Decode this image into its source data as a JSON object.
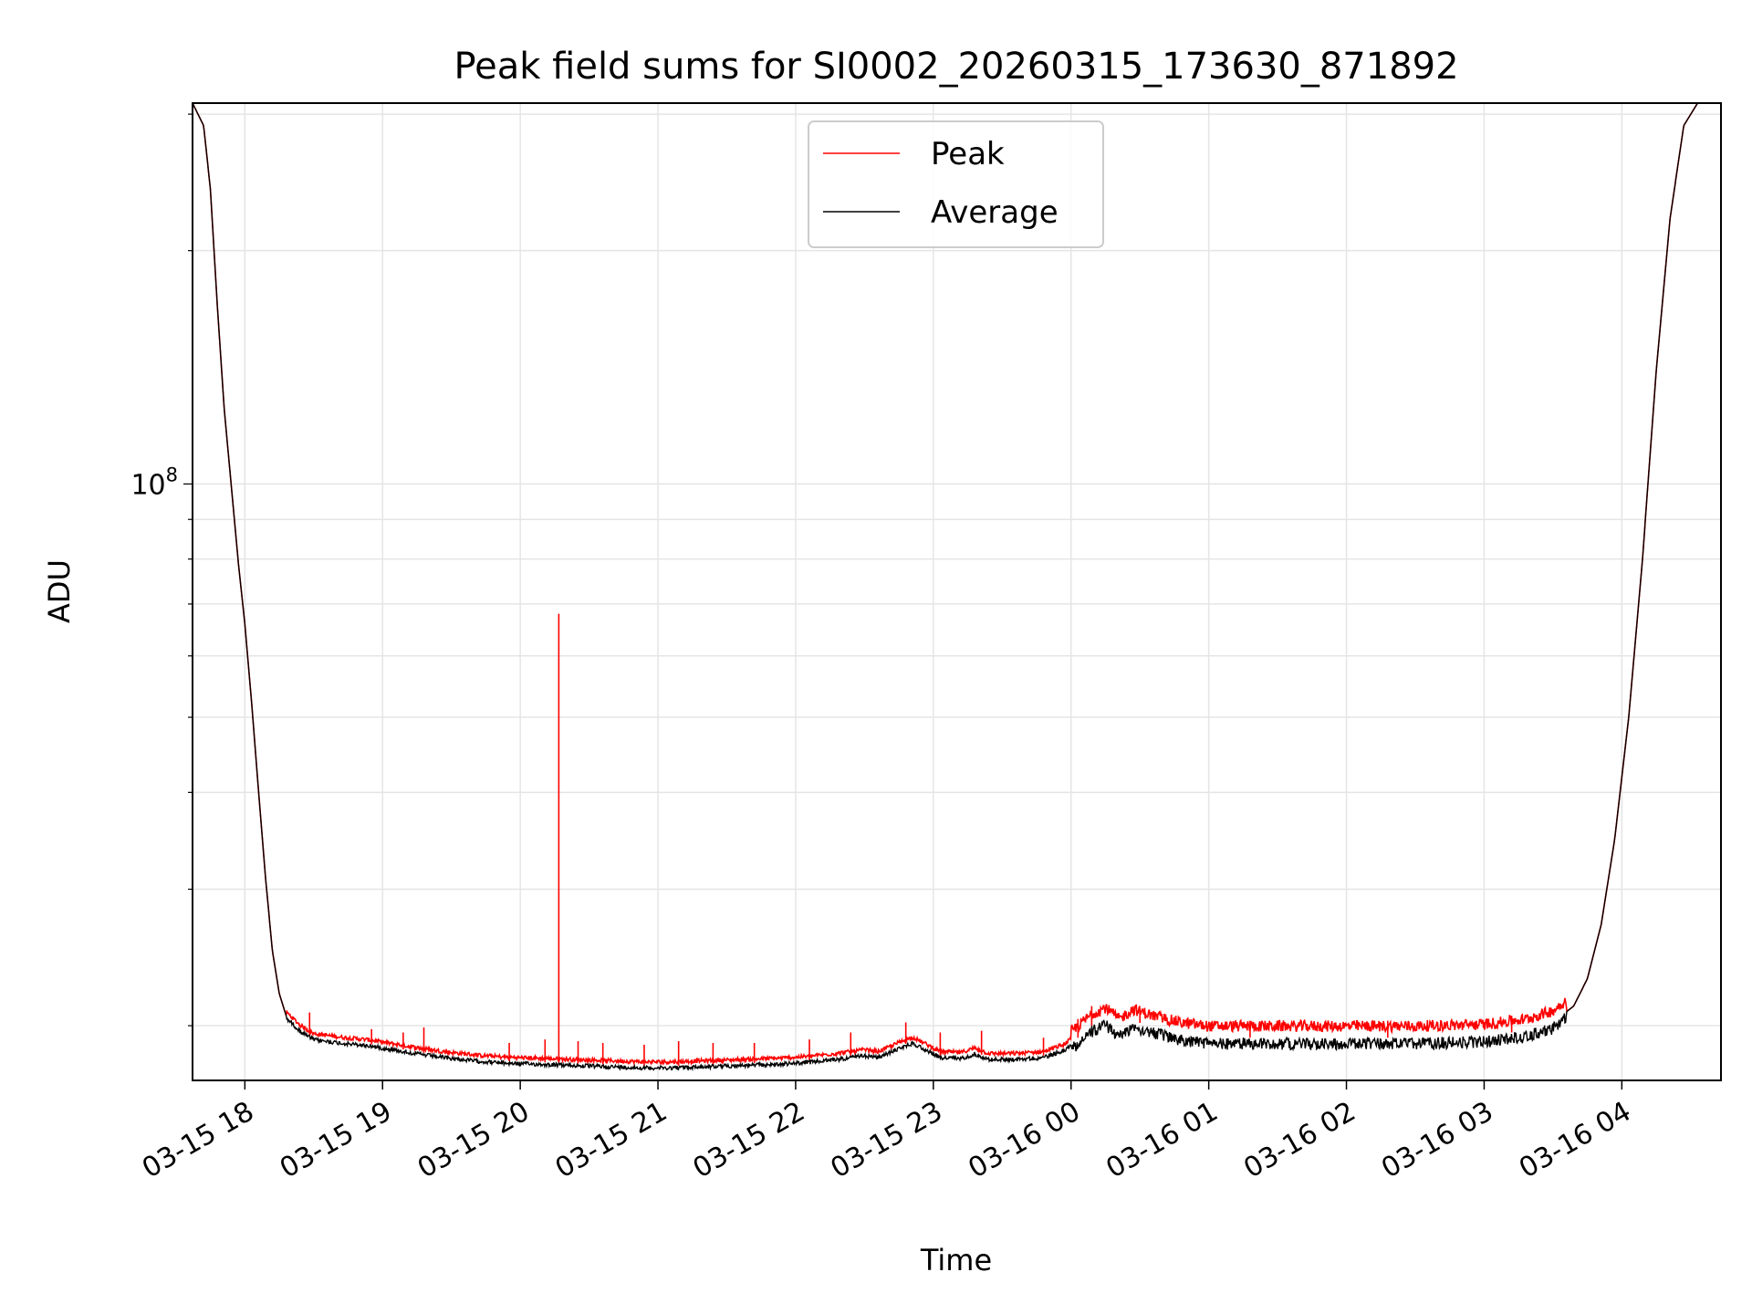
{
  "chart_data": {
    "type": "line",
    "title": "Peak field sums for SI0002_20260315_173630_871892",
    "xlabel": "Time",
    "ylabel": "ADU",
    "yscale": "log",
    "ylim": [
      17000000,
      310000000
    ],
    "xlim_hours": [
      17.62,
      28.72
    ],
    "grid": true,
    "legend_position": "top-center",
    "y_ticks": [
      {
        "value": 100000000,
        "base": "10",
        "exp": "8"
      }
    ],
    "x_ticks": [
      {
        "hour": 18,
        "label": "03-15 18"
      },
      {
        "hour": 19,
        "label": "03-15 19"
      },
      {
        "hour": 20,
        "label": "03-15 20"
      },
      {
        "hour": 21,
        "label": "03-15 21"
      },
      {
        "hour": 22,
        "label": "03-15 22"
      },
      {
        "hour": 23,
        "label": "03-15 23"
      },
      {
        "hour": 24,
        "label": "03-16 00"
      },
      {
        "hour": 25,
        "label": "03-16 01"
      },
      {
        "hour": 26,
        "label": "03-16 02"
      },
      {
        "hour": 27,
        "label": "03-16 03"
      },
      {
        "hour": 28,
        "label": "03-16 04"
      }
    ],
    "series": [
      {
        "name": "Peak",
        "color": "#ff0000"
      },
      {
        "name": "Average",
        "color": "#000000"
      }
    ],
    "average_points": [
      [
        17.62,
        310000000
      ],
      [
        17.7,
        290000000
      ],
      [
        17.75,
        240000000
      ],
      [
        17.8,
        170000000
      ],
      [
        17.85,
        125000000
      ],
      [
        17.9,
        100000000
      ],
      [
        17.95,
        80000000
      ],
      [
        18.0,
        66000000
      ],
      [
        18.05,
        52000000
      ],
      [
        18.1,
        40000000
      ],
      [
        18.15,
        31000000
      ],
      [
        18.2,
        25000000
      ],
      [
        18.25,
        22000000
      ],
      [
        18.3,
        20600000
      ],
      [
        18.4,
        19800000
      ],
      [
        18.5,
        19300000
      ],
      [
        18.7,
        19100000
      ],
      [
        18.9,
        18950000
      ],
      [
        19.1,
        18700000
      ],
      [
        19.3,
        18450000
      ],
      [
        19.5,
        18250000
      ],
      [
        19.7,
        18100000
      ],
      [
        19.9,
        18000000
      ],
      [
        20.1,
        17950000
      ],
      [
        20.3,
        17900000
      ],
      [
        20.5,
        17850000
      ],
      [
        20.7,
        17800000
      ],
      [
        20.9,
        17750000
      ],
      [
        21.1,
        17750000
      ],
      [
        21.3,
        17800000
      ],
      [
        21.5,
        17850000
      ],
      [
        21.7,
        17900000
      ],
      [
        21.9,
        17950000
      ],
      [
        22.1,
        18050000
      ],
      [
        22.3,
        18200000
      ],
      [
        22.5,
        18400000
      ],
      [
        22.6,
        18300000
      ],
      [
        22.75,
        18800000
      ],
      [
        22.85,
        19100000
      ],
      [
        22.95,
        18700000
      ],
      [
        23.05,
        18300000
      ],
      [
        23.2,
        18250000
      ],
      [
        23.3,
        18500000
      ],
      [
        23.4,
        18200000
      ],
      [
        23.6,
        18200000
      ],
      [
        23.8,
        18300000
      ],
      [
        23.95,
        18700000
      ],
      [
        24.05,
        19300000
      ],
      [
        24.15,
        20000000
      ],
      [
        24.25,
        20400000
      ],
      [
        24.35,
        19700000
      ],
      [
        24.45,
        20300000
      ],
      [
        24.6,
        19900000
      ],
      [
        24.8,
        19500000
      ],
      [
        25.0,
        19300000
      ],
      [
        25.5,
        19300000
      ],
      [
        26.0,
        19300000
      ],
      [
        26.5,
        19300000
      ],
      [
        27.0,
        19400000
      ],
      [
        27.3,
        19700000
      ],
      [
        27.5,
        20200000
      ],
      [
        27.65,
        21200000
      ],
      [
        27.75,
        23000000
      ],
      [
        27.85,
        27000000
      ],
      [
        27.95,
        35000000
      ],
      [
        28.05,
        50000000
      ],
      [
        28.15,
        80000000
      ],
      [
        28.25,
        140000000
      ],
      [
        28.35,
        220000000
      ],
      [
        28.45,
        290000000
      ],
      [
        28.55,
        310000000
      ],
      [
        28.72,
        310000000
      ]
    ],
    "peak_spikes": [
      [
        18.47,
        20800000
      ],
      [
        18.92,
        19800000
      ],
      [
        19.15,
        19600000
      ],
      [
        19.3,
        19900000
      ],
      [
        19.92,
        19000000
      ],
      [
        20.18,
        19200000
      ],
      [
        20.28,
        68000000
      ],
      [
        20.42,
        19100000
      ],
      [
        20.6,
        19000000
      ],
      [
        20.9,
        18900000
      ],
      [
        21.15,
        19100000
      ],
      [
        21.4,
        19000000
      ],
      [
        21.7,
        19000000
      ],
      [
        22.1,
        19200000
      ],
      [
        22.4,
        19600000
      ],
      [
        22.8,
        20200000
      ],
      [
        23.05,
        19600000
      ],
      [
        23.35,
        19700000
      ],
      [
        23.8,
        19300000
      ],
      [
        24.05,
        20400000
      ],
      [
        24.15,
        21200000
      ],
      [
        24.5,
        20900000
      ],
      [
        25.3,
        20300000
      ],
      [
        26.3,
        20300000
      ],
      [
        27.2,
        20600000
      ]
    ]
  }
}
